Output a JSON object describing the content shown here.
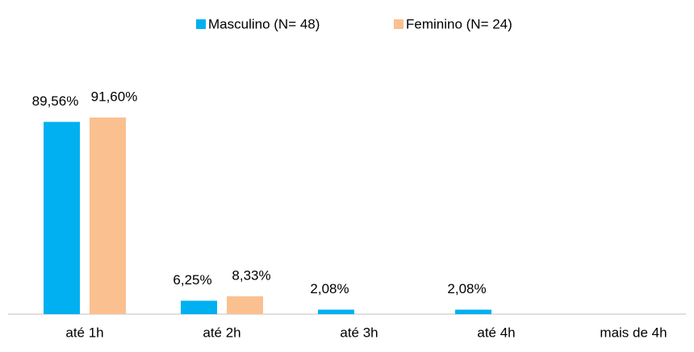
{
  "chart_data": {
    "type": "bar",
    "categories": [
      "até 1h",
      "até 2h",
      "até 3h",
      "até 4h",
      "mais de 4h"
    ],
    "series": [
      {
        "name": "Masculino (N= 48)",
        "color": "#00b0f0",
        "values": [
          89.56,
          6.25,
          2.08,
          2.08,
          0
        ],
        "value_labels": [
          "89,56%",
          "6,25%",
          "2,08%",
          "2,08%",
          null
        ]
      },
      {
        "name": "Feminino (N= 24)",
        "color": "#fac090",
        "values": [
          91.6,
          8.33,
          0,
          0,
          0
        ],
        "value_labels": [
          "91,60%",
          "8,33%",
          null,
          null,
          null
        ]
      }
    ],
    "legend": "top"
  }
}
